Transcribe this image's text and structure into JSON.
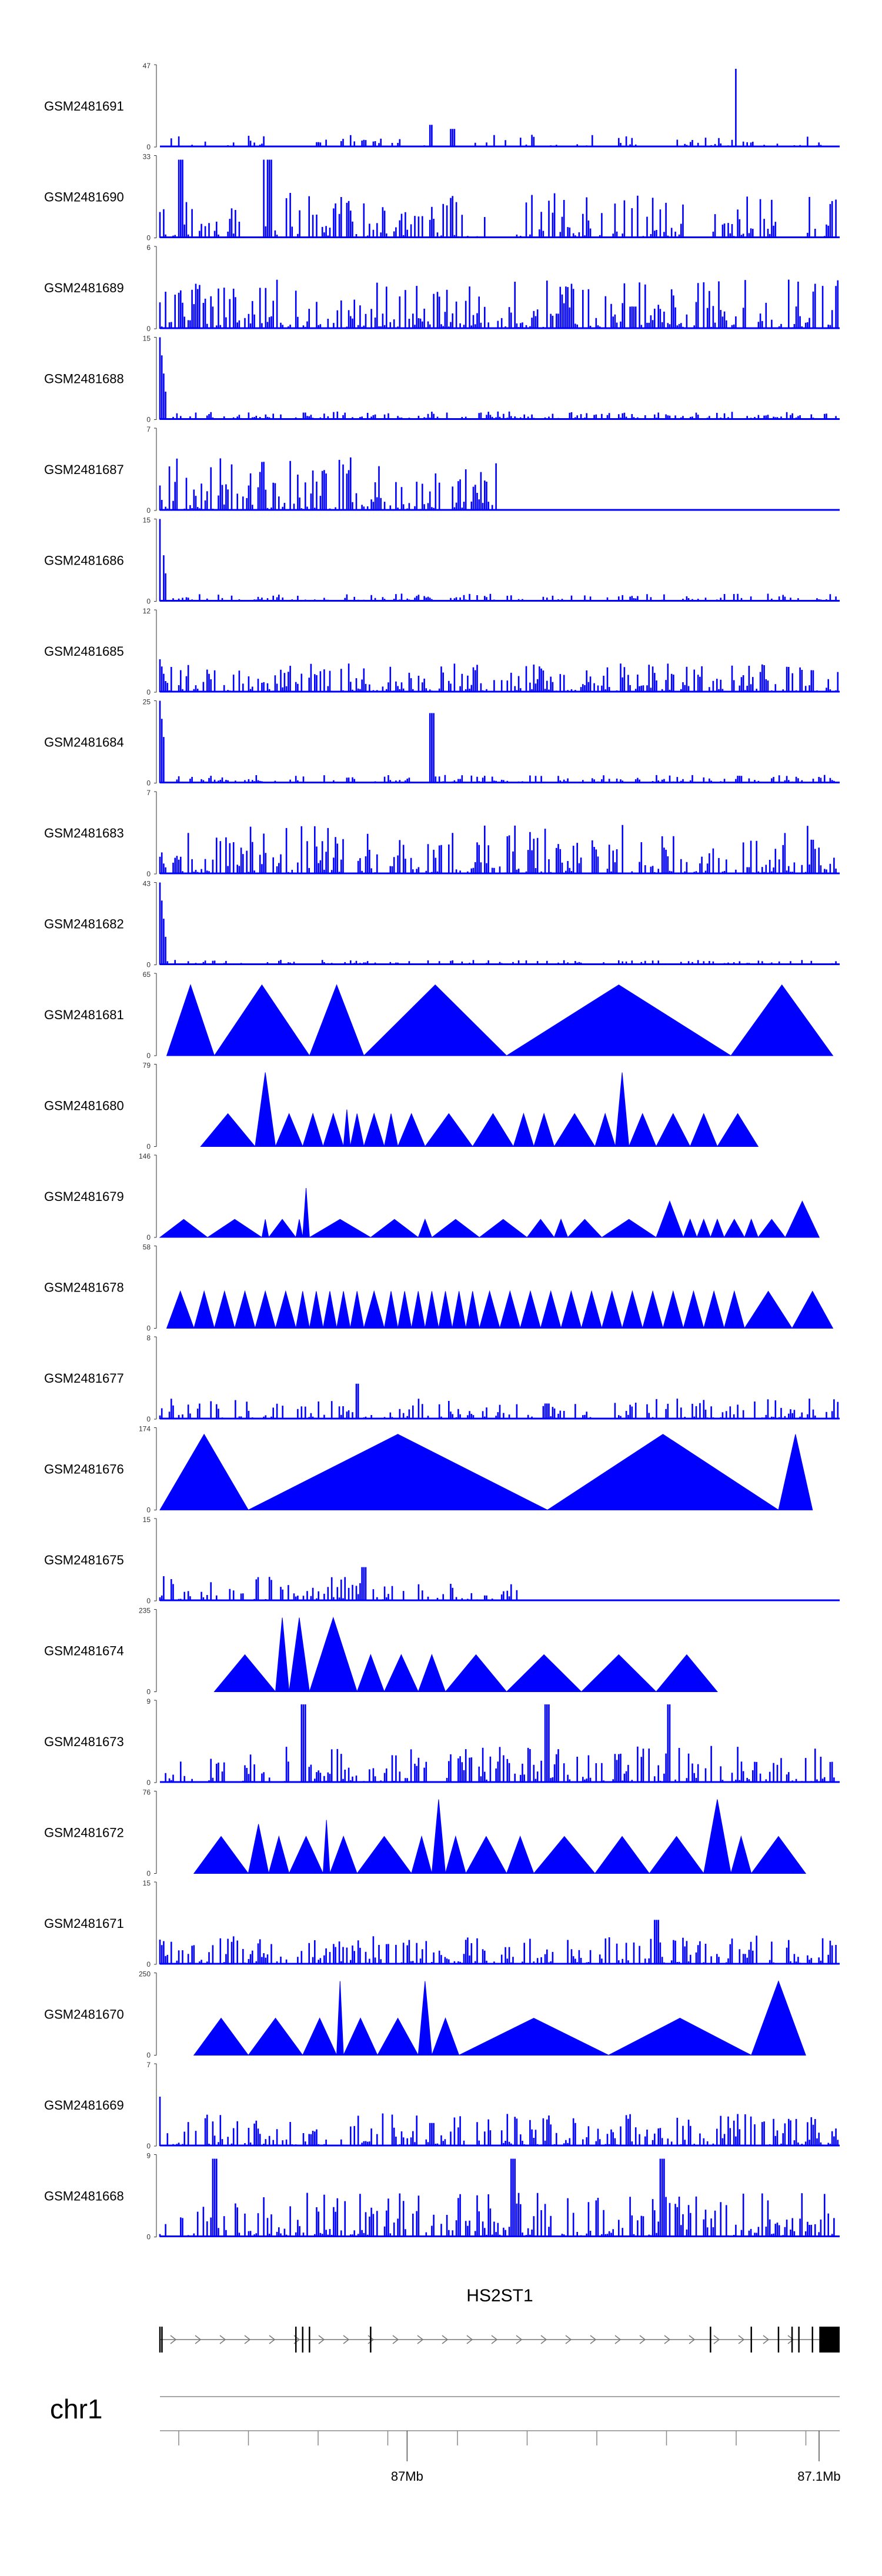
{
  "chart_data": {
    "type": "area",
    "title": "",
    "xlabel": "",
    "ylabel": "",
    "x_unit": "Mb",
    "x_range": [
      86.94,
      87.105
    ],
    "tracks": [
      {
        "name": "GSM2481691",
        "ymax": 47,
        "style": "signal",
        "seed": 11,
        "density": 0.55,
        "decay": 0.15,
        "start_spike": 0,
        "bumps": [
          0.4,
          0.27,
          0.85,
          0.95,
          0.43,
          0.22
        ]
      },
      {
        "name": "GSM2481690",
        "ymax": 33,
        "style": "mixed",
        "seed": 12,
        "density": 0.8,
        "decay": 0.55,
        "start_spike": 0,
        "peaks": [
          0.03,
          0.15,
          0.16
        ],
        "gaps": [
          0.12,
          0.15,
          0.48,
          0.52,
          0.77,
          0.81,
          0.91,
          0.95
        ]
      },
      {
        "name": "GSM2481689",
        "ymax": 6,
        "style": "signal",
        "seed": 13,
        "density": 0.95,
        "decay": 0.6,
        "start_spike": 0,
        "bumps": [
          0.6,
          0.03,
          0.7,
          0.27
        ]
      },
      {
        "name": "GSM2481688",
        "ymax": 15,
        "style": "signal",
        "seed": 14,
        "density": 0.9,
        "decay": 0.1,
        "start_spike": 1.0
      },
      {
        "name": "GSM2481687",
        "ymax": 7,
        "style": "signal",
        "seed": 15,
        "density": 0.95,
        "decay": 0.65,
        "start_spike": 0,
        "bumps": [
          0.68,
          0.97,
          0.5
        ]
      },
      {
        "name": "GSM2481686",
        "ymax": 15,
        "style": "signal",
        "seed": 16,
        "density": 0.9,
        "decay": 0.1,
        "start_spike": 1.0
      },
      {
        "name": "GSM2481685",
        "ymax": 12,
        "style": "signal",
        "seed": 17,
        "density": 0.95,
        "decay": 0.35,
        "start_spike": 0.4
      },
      {
        "name": "GSM2481684",
        "ymax": 25,
        "style": "signal",
        "seed": 18,
        "density": 0.9,
        "decay": 0.1,
        "start_spike": 1.0,
        "bumps": [
          0.4,
          0.85
        ]
      },
      {
        "name": "GSM2481683",
        "ymax": 7,
        "style": "signal",
        "seed": 19,
        "density": 0.95,
        "decay": 0.6,
        "start_spike": 0
      },
      {
        "name": "GSM2481682",
        "ymax": 43,
        "style": "signal",
        "seed": 20,
        "density": 0.8,
        "decay": 0.06,
        "start_spike": 1.0
      },
      {
        "name": "GSM2481681",
        "ymax": 65,
        "style": "triangles",
        "triangles": [
          [
            0.01,
            0.08,
            0.86
          ],
          [
            0.08,
            0.22,
            0.86
          ],
          [
            0.22,
            0.3,
            0.86
          ],
          [
            0.3,
            0.51,
            0.86
          ],
          [
            0.51,
            0.84,
            0.86
          ],
          [
            0.84,
            0.99,
            0.86
          ]
        ]
      },
      {
        "name": "GSM2481680",
        "ymax": 79,
        "style": "triangles",
        "triangles": [
          [
            0.06,
            0.14,
            0.4
          ],
          [
            0.14,
            0.17,
            0.9
          ],
          [
            0.17,
            0.21,
            0.4
          ],
          [
            0.21,
            0.24,
            0.4
          ],
          [
            0.24,
            0.27,
            0.4
          ],
          [
            0.27,
            0.28,
            0.45
          ],
          [
            0.28,
            0.3,
            0.4
          ],
          [
            0.3,
            0.33,
            0.4
          ],
          [
            0.33,
            0.35,
            0.4
          ],
          [
            0.35,
            0.39,
            0.4
          ],
          [
            0.39,
            0.46,
            0.4
          ],
          [
            0.46,
            0.52,
            0.4
          ],
          [
            0.52,
            0.55,
            0.4
          ],
          [
            0.55,
            0.58,
            0.4
          ],
          [
            0.58,
            0.64,
            0.4
          ],
          [
            0.64,
            0.67,
            0.4
          ],
          [
            0.67,
            0.69,
            0.9
          ],
          [
            0.69,
            0.73,
            0.4
          ],
          [
            0.73,
            0.78,
            0.4
          ],
          [
            0.78,
            0.82,
            0.4
          ],
          [
            0.82,
            0.88,
            0.4
          ]
        ]
      },
      {
        "name": "GSM2481679",
        "ymax": 146,
        "style": "triangles",
        "triangles": [
          [
            0.0,
            0.07,
            0.22
          ],
          [
            0.07,
            0.15,
            0.22
          ],
          [
            0.15,
            0.16,
            0.22
          ],
          [
            0.16,
            0.2,
            0.22
          ],
          [
            0.2,
            0.21,
            0.22
          ],
          [
            0.21,
            0.22,
            0.6
          ],
          [
            0.22,
            0.31,
            0.22
          ],
          [
            0.31,
            0.38,
            0.22
          ],
          [
            0.38,
            0.4,
            0.22
          ],
          [
            0.4,
            0.47,
            0.22
          ],
          [
            0.47,
            0.54,
            0.22
          ],
          [
            0.54,
            0.58,
            0.22
          ],
          [
            0.58,
            0.6,
            0.22
          ],
          [
            0.6,
            0.65,
            0.22
          ],
          [
            0.65,
            0.73,
            0.22
          ],
          [
            0.73,
            0.77,
            0.44
          ],
          [
            0.77,
            0.79,
            0.22
          ],
          [
            0.79,
            0.81,
            0.22
          ],
          [
            0.81,
            0.83,
            0.22
          ],
          [
            0.83,
            0.86,
            0.22
          ],
          [
            0.86,
            0.88,
            0.22
          ],
          [
            0.88,
            0.92,
            0.22
          ],
          [
            0.92,
            0.97,
            0.44
          ]
        ]
      },
      {
        "name": "GSM2481678",
        "ymax": 58,
        "style": "triangles",
        "triangles": [
          [
            0.01,
            0.05,
            0.45
          ],
          [
            0.05,
            0.08,
            0.45
          ],
          [
            0.08,
            0.11,
            0.45
          ],
          [
            0.11,
            0.14,
            0.45
          ],
          [
            0.14,
            0.17,
            0.45
          ],
          [
            0.17,
            0.2,
            0.45
          ],
          [
            0.2,
            0.22,
            0.45
          ],
          [
            0.22,
            0.24,
            0.45
          ],
          [
            0.24,
            0.26,
            0.45
          ],
          [
            0.26,
            0.28,
            0.45
          ],
          [
            0.28,
            0.3,
            0.45
          ],
          [
            0.3,
            0.33,
            0.45
          ],
          [
            0.33,
            0.35,
            0.45
          ],
          [
            0.35,
            0.37,
            0.45
          ],
          [
            0.37,
            0.39,
            0.45
          ],
          [
            0.39,
            0.41,
            0.45
          ],
          [
            0.41,
            0.43,
            0.45
          ],
          [
            0.43,
            0.45,
            0.45
          ],
          [
            0.45,
            0.47,
            0.45
          ],
          [
            0.47,
            0.5,
            0.45
          ],
          [
            0.5,
            0.53,
            0.45
          ],
          [
            0.53,
            0.56,
            0.45
          ],
          [
            0.56,
            0.59,
            0.45
          ],
          [
            0.59,
            0.62,
            0.45
          ],
          [
            0.62,
            0.65,
            0.45
          ],
          [
            0.65,
            0.68,
            0.45
          ],
          [
            0.68,
            0.71,
            0.45
          ],
          [
            0.71,
            0.74,
            0.45
          ],
          [
            0.74,
            0.77,
            0.45
          ],
          [
            0.77,
            0.8,
            0.45
          ],
          [
            0.8,
            0.83,
            0.45
          ],
          [
            0.83,
            0.86,
            0.45
          ],
          [
            0.86,
            0.93,
            0.45
          ],
          [
            0.93,
            0.99,
            0.45
          ]
        ]
      },
      {
        "name": "GSM2481677",
        "ymax": 8,
        "style": "signal",
        "seed": 27,
        "density": 0.75,
        "decay": 0.25,
        "start_spike": 0,
        "bumps": [
          0.29,
          0.43,
          0.57,
          0.19
        ]
      },
      {
        "name": "GSM2481676",
        "ymax": 174,
        "style": "triangles",
        "triangles": [
          [
            0.0,
            0.13,
            0.92
          ],
          [
            0.13,
            0.57,
            0.92
          ],
          [
            0.57,
            0.91,
            0.92
          ],
          [
            0.91,
            0.96,
            0.92
          ]
        ]
      },
      {
        "name": "GSM2481675",
        "ymax": 15,
        "style": "signal",
        "seed": 29,
        "density": 0.75,
        "decay": 0.3,
        "start_spike": 0,
        "bumps": [
          0.3,
          0.41,
          0.53
        ]
      },
      {
        "name": "GSM2481674",
        "ymax": 235,
        "style": "triangles",
        "triangles": [
          [
            0.08,
            0.17,
            0.45
          ],
          [
            0.17,
            0.19,
            0.9
          ],
          [
            0.19,
            0.22,
            0.9
          ],
          [
            0.22,
            0.29,
            0.9
          ],
          [
            0.29,
            0.33,
            0.45
          ],
          [
            0.33,
            0.38,
            0.45
          ],
          [
            0.38,
            0.42,
            0.45
          ],
          [
            0.42,
            0.51,
            0.45
          ],
          [
            0.51,
            0.62,
            0.45
          ],
          [
            0.62,
            0.73,
            0.45
          ],
          [
            0.73,
            0.82,
            0.45
          ]
        ]
      },
      {
        "name": "GSM2481673",
        "ymax": 9,
        "style": "mixed",
        "seed": 31,
        "density": 0.85,
        "decay": 0.45,
        "start_spike": 0,
        "peaks": [
          0.21,
          0.57,
          0.75
        ],
        "gaps": [
          0.05,
          0.07,
          0.1,
          0.12,
          0.4,
          0.42
        ]
      },
      {
        "name": "GSM2481672",
        "ymax": 76,
        "style": "triangles",
        "triangles": [
          [
            0.05,
            0.13,
            0.45
          ],
          [
            0.13,
            0.16,
            0.6
          ],
          [
            0.16,
            0.19,
            0.45
          ],
          [
            0.19,
            0.24,
            0.45
          ],
          [
            0.24,
            0.25,
            0.65
          ],
          [
            0.25,
            0.29,
            0.45
          ],
          [
            0.29,
            0.37,
            0.45
          ],
          [
            0.37,
            0.4,
            0.45
          ],
          [
            0.4,
            0.42,
            0.9
          ],
          [
            0.42,
            0.45,
            0.45
          ],
          [
            0.45,
            0.51,
            0.45
          ],
          [
            0.51,
            0.55,
            0.45
          ],
          [
            0.55,
            0.64,
            0.45
          ],
          [
            0.64,
            0.72,
            0.45
          ],
          [
            0.72,
            0.8,
            0.45
          ],
          [
            0.8,
            0.84,
            0.9
          ],
          [
            0.84,
            0.87,
            0.45
          ],
          [
            0.87,
            0.95,
            0.45
          ]
        ]
      },
      {
        "name": "GSM2481671",
        "ymax": 15,
        "style": "signal",
        "seed": 33,
        "density": 0.9,
        "decay": 0.35,
        "start_spike": 0.3,
        "bumps": [
          0.73,
          0.54
        ]
      },
      {
        "name": "GSM2481670",
        "ymax": 250,
        "style": "triangles",
        "triangles": [
          [
            0.05,
            0.13,
            0.45
          ],
          [
            0.13,
            0.21,
            0.45
          ],
          [
            0.21,
            0.26,
            0.45
          ],
          [
            0.26,
            0.27,
            0.9
          ],
          [
            0.27,
            0.32,
            0.45
          ],
          [
            0.32,
            0.38,
            0.45
          ],
          [
            0.38,
            0.4,
            0.9
          ],
          [
            0.4,
            0.44,
            0.45
          ],
          [
            0.44,
            0.66,
            0.45
          ],
          [
            0.66,
            0.87,
            0.45
          ],
          [
            0.87,
            0.95,
            0.9
          ]
        ]
      },
      {
        "name": "GSM2481669",
        "ymax": 7,
        "style": "signal",
        "seed": 35,
        "density": 0.9,
        "decay": 0.4,
        "start_spike": 0.6,
        "bumps": [
          0.4,
          0.28
        ]
      },
      {
        "name": "GSM2481668",
        "ymax": 9,
        "style": "mixed",
        "seed": 36,
        "density": 0.95,
        "decay": 0.55,
        "start_spike": 0,
        "peaks": [
          0.08,
          0.52,
          0.74
        ],
        "gaps": [
          0.01,
          0.03
        ]
      }
    ],
    "gene_track": {
      "label": "HS2ST1",
      "strand": "+",
      "exons": [
        0.0,
        0.003,
        0.2,
        0.21,
        0.22,
        0.31,
        0.81,
        0.87,
        0.91,
        0.93,
        0.94,
        0.96
      ],
      "end_block": [
        0.97,
        1.0
      ]
    },
    "axis": {
      "chromosome": "chr1",
      "tick_labels": [
        {
          "label": "87Mb",
          "value": 87.0
        },
        {
          "label": "87.1Mb",
          "value": 87.1
        }
      ]
    }
  }
}
